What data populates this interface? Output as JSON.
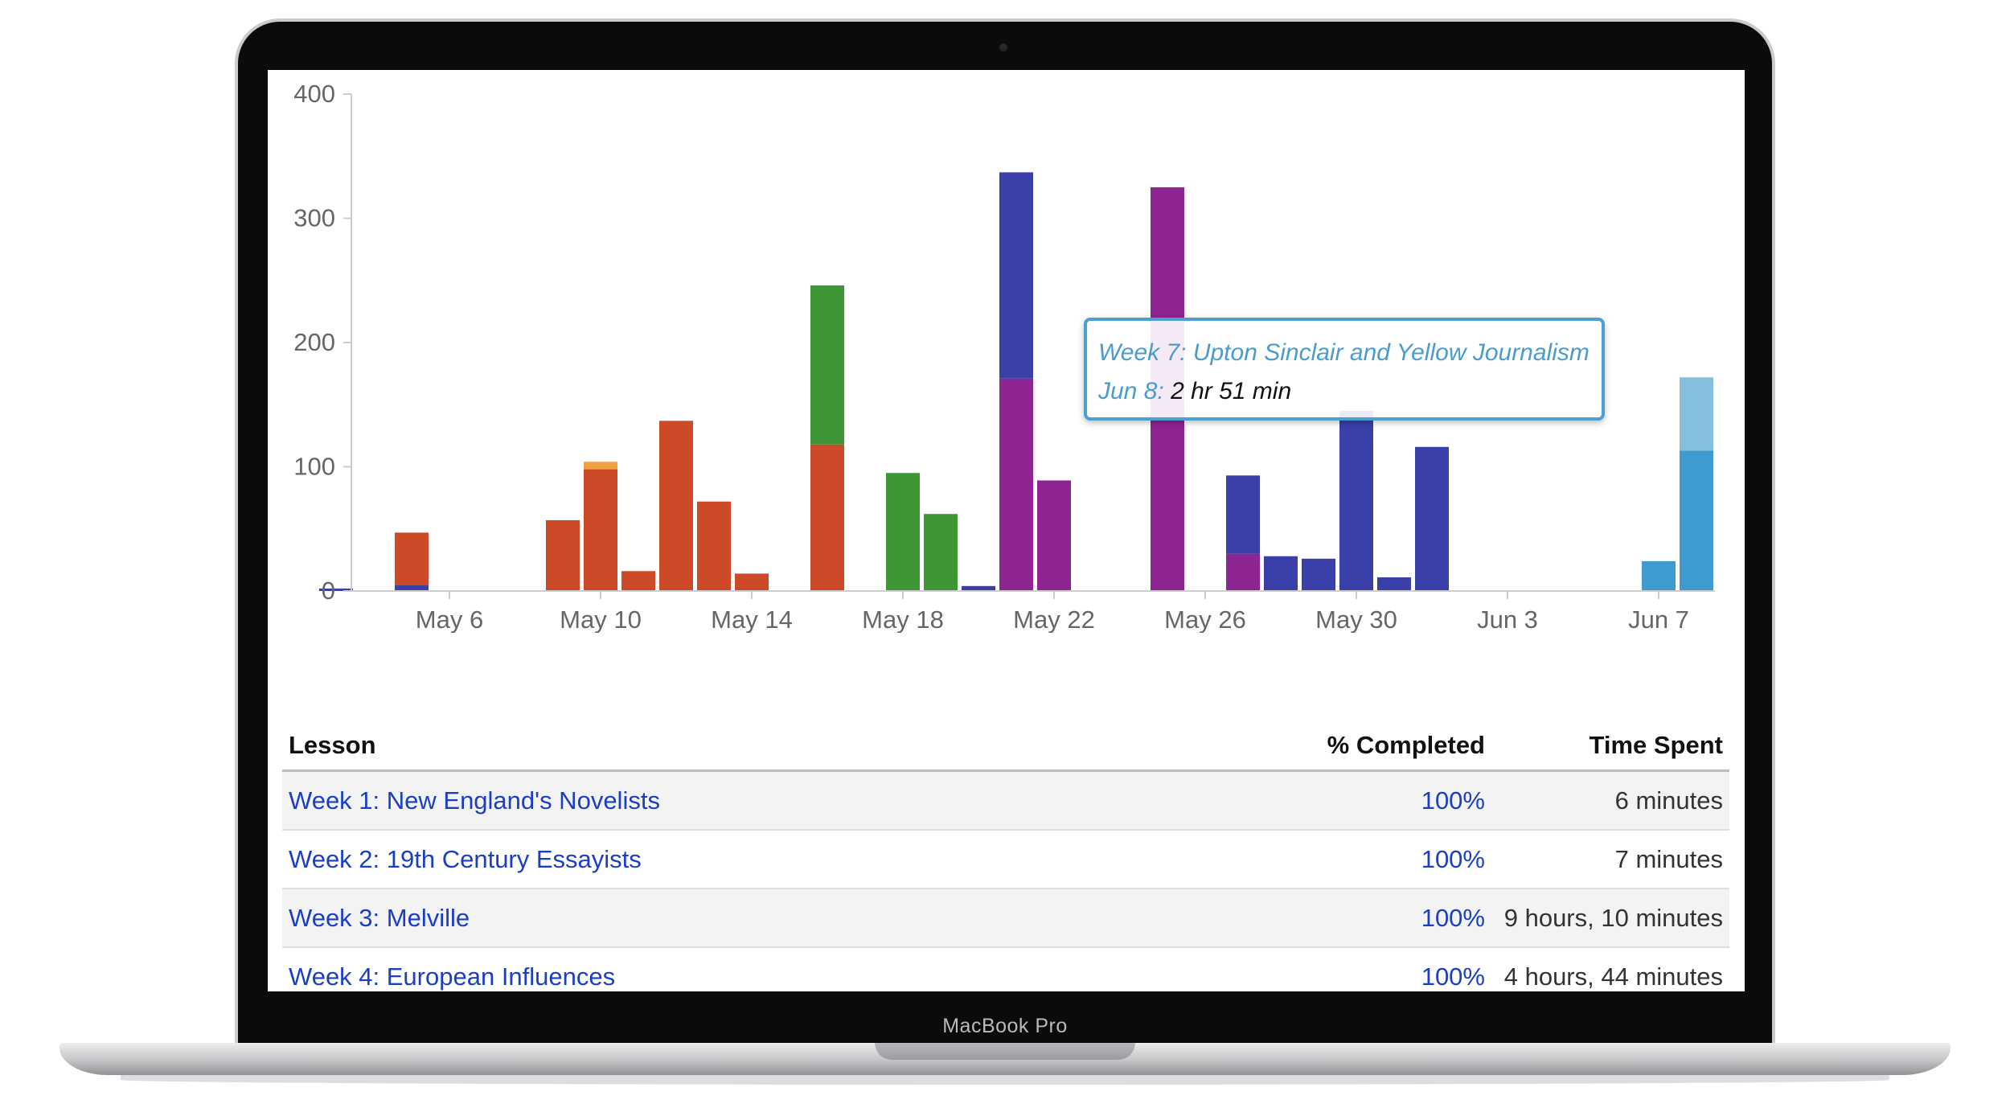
{
  "device": {
    "brand_label": "MacBook Pro"
  },
  "chart_data": {
    "type": "bar",
    "stacked": true,
    "ylim": [
      0,
      400
    ],
    "y_ticks": [
      "0",
      "100",
      "200",
      "300",
      "400"
    ],
    "x_tick_labels": [
      "May 6",
      "May 10",
      "May 14",
      "May 18",
      "May 22",
      "May 26",
      "May 30",
      "Jun 3",
      "Jun 7"
    ],
    "colors": {
      "blue": "#3b3fa8",
      "red": "#cc4a28",
      "orange": "#f0a040",
      "green": "#3e9636",
      "purple": "#8e2392",
      "teal": "#3f9ad0",
      "teal_light": "#86bfde"
    },
    "bars": [
      {
        "date": "May 3",
        "segments": [
          {
            "value": 2,
            "color": "blue"
          }
        ]
      },
      {
        "date": "May 5",
        "segments": [
          {
            "value": 5,
            "color": "blue"
          },
          {
            "value": 42,
            "color": "red"
          }
        ]
      },
      {
        "date": "May 9",
        "segments": [
          {
            "value": 57,
            "color": "red"
          }
        ]
      },
      {
        "date": "May 10",
        "segments": [
          {
            "value": 98,
            "color": "red"
          },
          {
            "value": 6,
            "color": "orange"
          }
        ]
      },
      {
        "date": "May 11",
        "segments": [
          {
            "value": 16,
            "color": "red"
          }
        ]
      },
      {
        "date": "May 12",
        "segments": [
          {
            "value": 137,
            "color": "red"
          }
        ]
      },
      {
        "date": "May 13",
        "segments": [
          {
            "value": 72,
            "color": "red"
          }
        ]
      },
      {
        "date": "May 14",
        "segments": [
          {
            "value": 14,
            "color": "red"
          }
        ]
      },
      {
        "date": "May 16",
        "segments": [
          {
            "value": 118,
            "color": "red"
          },
          {
            "value": 128,
            "color": "green"
          }
        ]
      },
      {
        "date": "May 18",
        "segments": [
          {
            "value": 95,
            "color": "green"
          }
        ]
      },
      {
        "date": "May 19",
        "segments": [
          {
            "value": 62,
            "color": "green"
          }
        ]
      },
      {
        "date": "May 20",
        "segments": [
          {
            "value": 4,
            "color": "blue"
          }
        ]
      },
      {
        "date": "May 21",
        "segments": [
          {
            "value": 171,
            "color": "purple"
          },
          {
            "value": 166,
            "color": "blue"
          }
        ]
      },
      {
        "date": "May 22",
        "segments": [
          {
            "value": 89,
            "color": "purple"
          }
        ]
      },
      {
        "date": "May 25",
        "segments": [
          {
            "value": 325,
            "color": "purple"
          }
        ]
      },
      {
        "date": "May 27",
        "segments": [
          {
            "value": 30,
            "color": "purple"
          },
          {
            "value": 63,
            "color": "blue"
          }
        ]
      },
      {
        "date": "May 28",
        "segments": [
          {
            "value": 28,
            "color": "blue"
          }
        ]
      },
      {
        "date": "May 29",
        "segments": [
          {
            "value": 26,
            "color": "blue"
          }
        ]
      },
      {
        "date": "May 30",
        "segments": [
          {
            "value": 145,
            "color": "blue"
          }
        ]
      },
      {
        "date": "May 31",
        "segments": [
          {
            "value": 11,
            "color": "blue"
          }
        ]
      },
      {
        "date": "Jun 1",
        "segments": [
          {
            "value": 116,
            "color": "blue"
          }
        ]
      },
      {
        "date": "Jun 7",
        "segments": [
          {
            "value": 24,
            "color": "teal"
          }
        ]
      },
      {
        "date": "Jun 8",
        "segments": [
          {
            "value": 113,
            "color": "teal"
          },
          {
            "value": 59,
            "color": "teal_light"
          }
        ]
      }
    ],
    "tooltip": {
      "series": "Week 7: Upton Sinclair and Yellow Journalism",
      "date_label": "Jun 8:",
      "value": "2 hr 51 min"
    }
  },
  "table": {
    "columns": [
      "Lesson",
      "% Completed",
      "Time Spent"
    ],
    "rows": [
      {
        "lesson": "Week 1: New England's Novelists",
        "completed": "100%",
        "time": "6 minutes"
      },
      {
        "lesson": "Week 2: 19th Century Essayists",
        "completed": "100%",
        "time": "7 minutes"
      },
      {
        "lesson": "Week 3: Melville",
        "completed": "100%",
        "time": "9 hours, 10 minutes"
      },
      {
        "lesson": "Week 4: European Influences",
        "completed": "100%",
        "time": "4 hours, 44 minutes"
      }
    ]
  }
}
